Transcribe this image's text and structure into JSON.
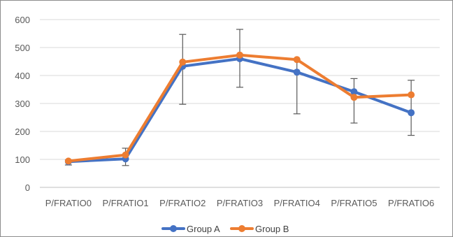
{
  "chart_data": {
    "type": "line",
    "title": "",
    "xlabel": "",
    "ylabel": "",
    "categories": [
      "P/FRATIO0",
      "P/FRATIO1",
      "P/FRATIO2",
      "P/FRATIO3",
      "P/FRATIO4",
      "P/FRATIO5",
      "P/FRATIO6"
    ],
    "ylim": [
      0,
      600
    ],
    "yticks": [
      0,
      100,
      200,
      300,
      400,
      500,
      600
    ],
    "grid": true,
    "legend": "bottom",
    "series": [
      {
        "name": "Group A",
        "color": "#4472c4",
        "values": [
          92,
          102,
          433,
          460,
          412,
          342,
          267
        ]
      },
      {
        "name": "Group B",
        "color": "#ed7d31",
        "values": [
          94,
          116,
          448,
          473,
          457,
          322,
          331
        ]
      }
    ],
    "error_bars": {
      "color": "#595959",
      "ranges": [
        [
          80,
          98
        ],
        [
          78,
          140
        ],
        [
          297,
          547
        ],
        [
          358,
          565
        ],
        [
          263,
          458
        ],
        [
          230,
          389
        ],
        [
          186,
          383
        ]
      ]
    }
  }
}
